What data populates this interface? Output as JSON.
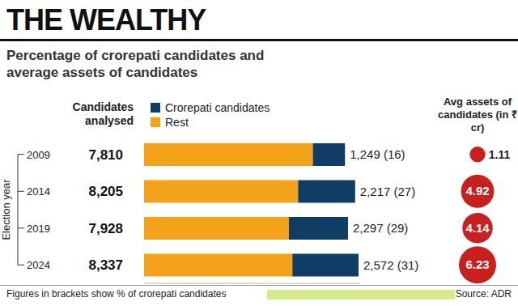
{
  "chart_data": {
    "type": "bar",
    "title": "THE WEALTHY",
    "subtitle": "Percentage of crorepati candidates and average assets of candidates",
    "orientation": "horizontal",
    "stacked": true,
    "data_labels": true,
    "tick_labels": "y",
    "legend": "top",
    "y_label": "Election year",
    "categories": [
      "2009",
      "2014",
      "2019",
      "2024"
    ],
    "column_title": "Candidates analysed",
    "candidates_analysed": [
      7810,
      8205,
      7928,
      8337
    ],
    "xlim": [
      0,
      8400
    ],
    "series": [
      {
        "name": "Rest",
        "color": "#f5a21b",
        "values": [
          6561,
          5988,
          5631,
          5765
        ]
      },
      {
        "name": "Crorepati candidates",
        "color": "#0f3d66",
        "values": [
          1249,
          2217,
          2297,
          2572
        ],
        "value_labels": [
          "1,249 (16)",
          "2,217 (27)",
          "2,297 (29)",
          "2,572 (31)"
        ]
      }
    ],
    "avg_assets": {
      "title": "Avg assets of candidates (in ₹ cr)",
      "color": "#c8201e",
      "values": [
        1.11,
        4.92,
        4.14,
        6.23
      ]
    },
    "note": "Figures in brackets show % of crorepati candidates",
    "source": "Source: ADR"
  }
}
